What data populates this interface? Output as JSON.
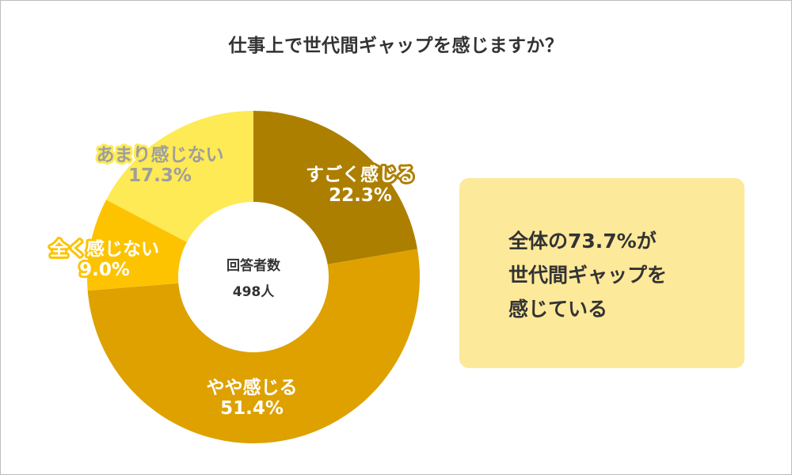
{
  "title": "仕事上で世代間ギャップを感じますか？",
  "chart_data": {
    "type": "pie",
    "variant": "donut",
    "title": "仕事上で世代間ギャップを感じますか？",
    "center_label": "回答者数",
    "center_value": "498人",
    "slices": [
      {
        "label": "すごく感じる",
        "value": 22.3,
        "value_text": "22.3%",
        "color": "#ad7f00",
        "label_color": "#ffffff",
        "outline_color": "#ad7f00"
      },
      {
        "label": "やや感じる",
        "value": 51.4,
        "value_text": "51.4%",
        "color": "#dea100",
        "label_color": "#ffffff",
        "outline_color": "#dea100"
      },
      {
        "label": "全く感じない",
        "value": 9.0,
        "value_text": "9.0%",
        "color": "#fdc300",
        "label_color": "#ffffff",
        "outline_color": "#fdc300"
      },
      {
        "label": "あまり感じない",
        "value": 17.3,
        "value_text": "17.3%",
        "color": "#fdea55",
        "label_color": "#9e9e9e",
        "outline_color": "#fdea55"
      }
    ]
  },
  "callout": {
    "lines": [
      "全体の73.7%が",
      "世代間ギャップを",
      "感じている"
    ],
    "background": "#fde99a"
  }
}
